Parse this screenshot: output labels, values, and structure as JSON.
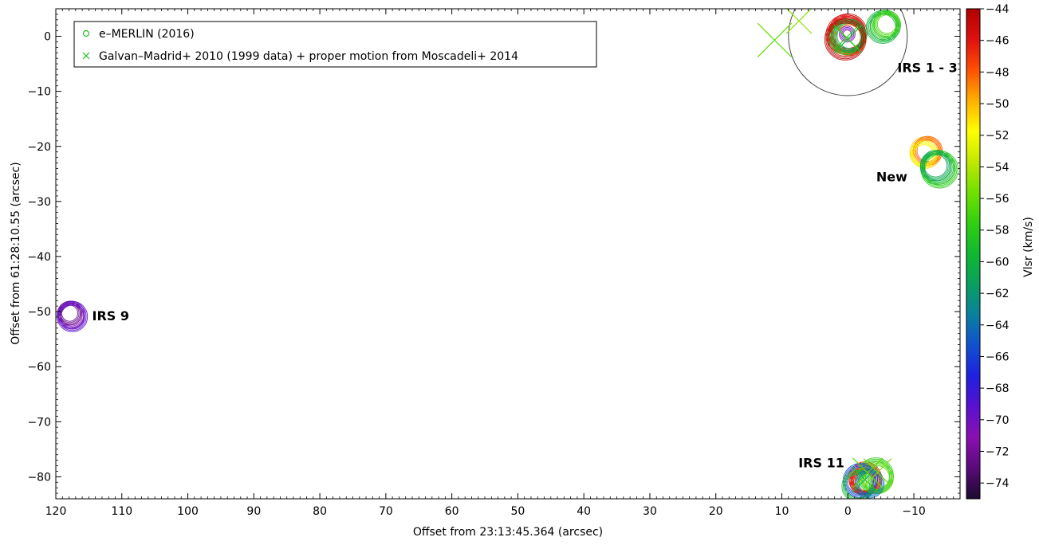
{
  "chart_data": {
    "type": "scatter",
    "title": "",
    "xlabel": "Offset from 23:13:45.364 (arcsec)",
    "ylabel": "Offset from 61:28:10.55 (arcsec)",
    "xlim": [
      120,
      -17
    ],
    "ylim": [
      -84,
      5
    ],
    "x_reversed": true,
    "x_ticks": [
      120,
      110,
      100,
      90,
      80,
      70,
      60,
      50,
      40,
      30,
      20,
      10,
      0,
      -10
    ],
    "x_tick_labels": [
      "120",
      "110",
      "100",
      "90",
      "80",
      "70",
      "60",
      "50",
      "40",
      "30",
      "20",
      "10",
      "0",
      "−10"
    ],
    "y_ticks": [
      0,
      -10,
      -20,
      -30,
      -40,
      -50,
      -60,
      -70,
      -80
    ],
    "y_tick_labels": [
      "0",
      "−10",
      "−20",
      "−30",
      "−40",
      "−50",
      "−60",
      "−70",
      "−80"
    ],
    "grid": false,
    "legend_position": "top-left",
    "legend": [
      {
        "marker": "circle",
        "color": "#22bb22",
        "label": "e–MERLIN (2016)"
      },
      {
        "marker": "cross",
        "color": "#22bb22",
        "label": "Galvan–Madrid+ 2010 (1999 data) + proper motion from Moscadeli+ 2014"
      }
    ],
    "colorbar": {
      "label": "Vlsr (km/s)",
      "min": -75,
      "max": -44,
      "ticks": [
        -44,
        -46,
        -48,
        -50,
        -52,
        -54,
        -56,
        -58,
        -60,
        -62,
        -64,
        -66,
        -68,
        -70,
        -72,
        -74
      ],
      "tick_labels": [
        "−44",
        "−46",
        "−48",
        "−50",
        "−52",
        "−54",
        "−56",
        "−58",
        "−60",
        "−62",
        "−64",
        "−66",
        "−68",
        "−70",
        "−72",
        "−74"
      ],
      "colors": [
        "#1a0a2e",
        "#5a0a7a",
        "#8a10b0",
        "#5a10d0",
        "#2020e0",
        "#1050d0",
        "#0a80a0",
        "#08a060",
        "#10b830",
        "#30d010",
        "#70e000",
        "#c0e800",
        "#ffff00",
        "#ffb000",
        "#ff5000",
        "#e01010",
        "#b00000"
      ]
    },
    "annotations": [
      {
        "text": "IRS 1 - 3",
        "x": -7.5,
        "y": -6.5
      },
      {
        "text": "New",
        "x": -4.3,
        "y": -26.3
      },
      {
        "text": "IRS 9",
        "x": 114.5,
        "y": -51.6
      },
      {
        "text": "IRS 11",
        "x": 7.5,
        "y": -78.3
      }
    ],
    "reference_circle": {
      "x": 0,
      "y": 0,
      "radius_arcsec": 9
    },
    "series": [
      {
        "name": "e–MERLIN (2016)",
        "marker": "circle",
        "points": [
          {
            "x": 0.1,
            "y": 0.0,
            "v": -47.5,
            "r": 2.8
          },
          {
            "x": 0.3,
            "y": 0.3,
            "v": -46.0,
            "r": 3.0
          },
          {
            "x": -0.2,
            "y": -0.4,
            "v": -48.5,
            "r": 2.6
          },
          {
            "x": 0.0,
            "y": 0.6,
            "v": -45.5,
            "r": 2.9
          },
          {
            "x": 0.2,
            "y": -0.1,
            "v": -59.0,
            "r": 2.7
          },
          {
            "x": -0.3,
            "y": 0.1,
            "v": -60.5,
            "r": 2.5
          },
          {
            "x": 0.4,
            "y": -0.6,
            "v": -44.5,
            "r": 3.1
          },
          {
            "x": 0.1,
            "y": 0.4,
            "v": -70.5,
            "r": 1.2
          },
          {
            "x": -5.7,
            "y": 2.0,
            "v": -58.5,
            "r": 2.3
          },
          {
            "x": -5.3,
            "y": 1.7,
            "v": -60.0,
            "r": 2.5
          },
          {
            "x": -5.9,
            "y": 2.2,
            "v": -57.0,
            "r": 2.0
          },
          {
            "x": -11.8,
            "y": -21.1,
            "v": -50.5,
            "r": 2.4
          },
          {
            "x": -12.1,
            "y": -20.8,
            "v": -48.0,
            "r": 2.2
          },
          {
            "x": -11.5,
            "y": -21.4,
            "v": -52.0,
            "r": 2.0
          },
          {
            "x": -13.6,
            "y": -23.8,
            "v": -59.5,
            "r": 2.6
          },
          {
            "x": -13.9,
            "y": -24.2,
            "v": -58.0,
            "r": 2.8
          },
          {
            "x": -13.3,
            "y": -23.5,
            "v": -61.0,
            "r": 2.3
          },
          {
            "x": 117.7,
            "y": -50.6,
            "v": -71.0,
            "r": 2.1
          },
          {
            "x": 117.9,
            "y": -50.3,
            "v": -72.5,
            "r": 1.8
          },
          {
            "x": 117.5,
            "y": -50.9,
            "v": -69.5,
            "r": 2.3
          },
          {
            "x": -2.6,
            "y": -80.3,
            "v": -46.0,
            "r": 2.5
          },
          {
            "x": -2.9,
            "y": -80.6,
            "v": -48.0,
            "r": 2.2
          },
          {
            "x": -2.3,
            "y": -80.9,
            "v": -45.0,
            "r": 2.0
          },
          {
            "x": -4.2,
            "y": -79.8,
            "v": -58.0,
            "r": 2.7
          },
          {
            "x": -4.5,
            "y": -80.2,
            "v": -56.5,
            "r": 2.4
          },
          {
            "x": -1.9,
            "y": -80.7,
            "v": -65.5,
            "r": 2.6
          },
          {
            "x": -1.5,
            "y": -81.7,
            "v": -59.5,
            "r": 2.4
          },
          {
            "x": -3.3,
            "y": -81.2,
            "v": -64.0,
            "r": 2.2
          }
        ]
      },
      {
        "name": "Galvan–Madrid+ 2010 (1999 data) + proper motion from Moscadeli+ 2014",
        "marker": "cross",
        "points": [
          {
            "x": 11.1,
            "y": -0.7,
            "v": -56.0,
            "s": 1.6
          },
          {
            "x": 7.4,
            "y": 2.8,
            "v": -55.0,
            "s": 1.2
          },
          {
            "x": 0.0,
            "y": -0.5,
            "v": -59.0,
            "s": 1.3
          },
          {
            "x": 0.2,
            "y": -0.2,
            "v": -57.5,
            "s": 1.1
          },
          {
            "x": -3.0,
            "y": -79.3,
            "v": -56.5,
            "s": 1.4
          },
          {
            "x": -2.6,
            "y": -80.5,
            "v": -59.0,
            "s": 1.2
          },
          {
            "x": -4.5,
            "y": -79.2,
            "v": -55.5,
            "s": 1.3
          }
        ]
      }
    ]
  }
}
